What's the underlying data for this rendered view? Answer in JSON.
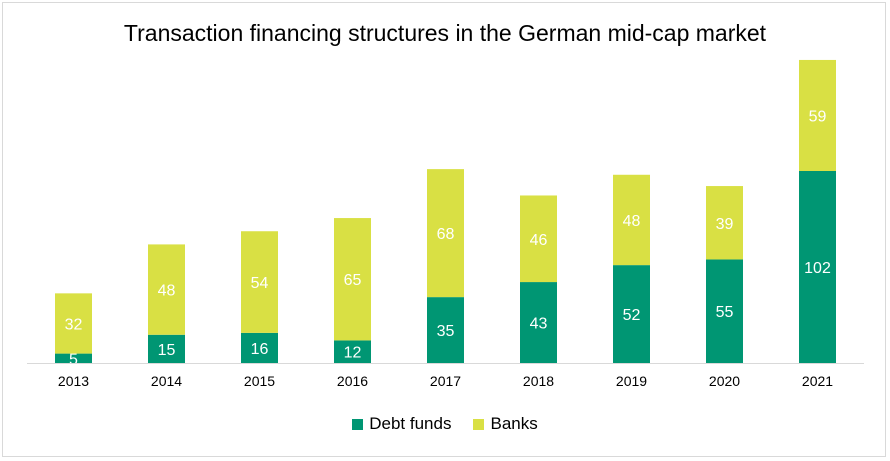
{
  "chart_data": {
    "type": "bar",
    "stacked": true,
    "title": "Transaction financing structures in the German mid-cap market",
    "xlabel": "",
    "ylabel": "",
    "ylim": [
      0,
      170
    ],
    "grid": false,
    "legend_position": "bottom",
    "categories": [
      "2013",
      "2014",
      "2015",
      "2016",
      "2017",
      "2018",
      "2019",
      "2020",
      "2021"
    ],
    "series": [
      {
        "name": "Debt funds",
        "color": "#009673",
        "values": [
          5,
          15,
          16,
          12,
          35,
          43,
          52,
          55,
          102
        ]
      },
      {
        "name": "Banks",
        "color": "#d9e044",
        "values": [
          32,
          48,
          54,
          65,
          68,
          46,
          48,
          39,
          59
        ]
      }
    ]
  }
}
